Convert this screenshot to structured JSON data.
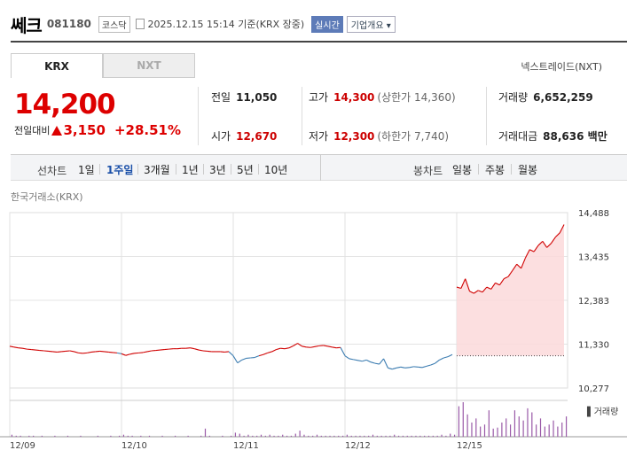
{
  "header": {
    "stock_name": "쎄크",
    "stock_code": "081180",
    "market": "코스닥",
    "timestamp": "2025.12.15 15:14",
    "basis": "기준(KRX 장중)",
    "realtime_badge": "실시간",
    "overview_button": "기업개요"
  },
  "tabs": [
    {
      "label": "KRX",
      "active": true
    },
    {
      "label": "NXT",
      "active": false
    }
  ],
  "nxt_link": "넥스트레이드(NXT)",
  "quote": {
    "price": "14,200",
    "change_label": "전일대비",
    "change_value": "3,150",
    "change_percent": "+28.51%",
    "direction": "up"
  },
  "stats": {
    "prev_close": {
      "label": "전일",
      "value": "11,050"
    },
    "high": {
      "label": "고가",
      "value": "14,300",
      "note": "(상한가 14,360)"
    },
    "volume": {
      "label": "거래량",
      "value": "6,652,259"
    },
    "open": {
      "label": "시가",
      "value": "12,670"
    },
    "low": {
      "label": "저가",
      "value": "12,300",
      "note": "(하한가 7,740)"
    },
    "trade_amount": {
      "label": "거래대금",
      "value": "88,636 백만"
    }
  },
  "period_bar": {
    "line_label": "선차트",
    "line_items": [
      {
        "label": "1일",
        "active": false
      },
      {
        "label": "1주일",
        "active": true
      },
      {
        "label": "3개월",
        "active": false
      },
      {
        "label": "1년",
        "active": false
      },
      {
        "label": "3년",
        "active": false
      },
      {
        "label": "5년",
        "active": false
      },
      {
        "label": "10년",
        "active": false
      }
    ],
    "candle_label": "봉차트",
    "candle_items": [
      {
        "label": "일봉"
      },
      {
        "label": "주봉"
      },
      {
        "label": "월봉"
      }
    ]
  },
  "chart_source": "한국거래소(KRX)",
  "colors": {
    "up": "#d00000",
    "down": "#1a5ea8",
    "neutral_line": "#3a7bb0",
    "up_fill": "#fbd9db",
    "volume_bar": "#9a5aa8"
  },
  "chart_data": {
    "type": "line",
    "title": "",
    "y_ticks": [
      "14,488",
      "13,435",
      "12,383",
      "11,330",
      "10,277"
    ],
    "ylim": [
      10277,
      14488
    ],
    "x_ticks": [
      "12/09",
      "12/10",
      "12/11",
      "12/12",
      "12/15"
    ],
    "prev_close_ref": 11050,
    "volume_label": "거래량",
    "series": [
      {
        "day": "12/09",
        "values": [
          11280,
          11260,
          11240,
          11230,
          11210,
          11200,
          11190,
          11180,
          11170,
          11160,
          11150,
          11140,
          11150,
          11160,
          11170,
          11150,
          11120,
          11110,
          11120,
          11140,
          11150,
          11160,
          11150,
          11140,
          11130,
          11120
        ]
      },
      {
        "day": "12/10",
        "values": [
          11100,
          11060,
          11090,
          11110,
          11120,
          11130,
          11150,
          11170,
          11180,
          11190,
          11200,
          11210,
          11220,
          11220,
          11230,
          11230,
          11240,
          11220,
          11190,
          11170,
          11160,
          11150,
          11150,
          11150,
          11140,
          11150
        ]
      },
      {
        "day": "12/11",
        "values": [
          11050,
          10880,
          10950,
          10990,
          11000,
          11010,
          11050,
          11080,
          11120,
          11150,
          11200,
          11230,
          11220,
          11240,
          11290,
          11350,
          11280,
          11260,
          11250,
          11270,
          11290,
          11300,
          11280,
          11260,
          11240,
          11250
        ]
      },
      {
        "day": "12/12",
        "values": [
          11050,
          10980,
          10960,
          10940,
          10920,
          10950,
          10900,
          10870,
          10850,
          10980,
          10760,
          10730,
          10760,
          10780,
          10760,
          10770,
          10790,
          10780,
          10770,
          10800,
          10830,
          10870,
          10950,
          11000,
          11030,
          11080
        ]
      },
      {
        "day": "12/15",
        "values": [
          12700,
          12670,
          12900,
          12600,
          12550,
          12620,
          12580,
          12700,
          12650,
          12800,
          12750,
          12900,
          12950,
          13100,
          13250,
          13150,
          13400,
          13600,
          13550,
          13700,
          13800,
          13650,
          13750,
          13900,
          14000,
          14200
        ]
      }
    ],
    "volume": [
      {
        "day": "12/09",
        "values": [
          2,
          1,
          1,
          0,
          1,
          1,
          0,
          1,
          0,
          0,
          1,
          0,
          0,
          1,
          0,
          0,
          1,
          0,
          0,
          0,
          1,
          0,
          0,
          1,
          0,
          1
        ]
      },
      {
        "day": "12/10",
        "values": [
          2,
          1,
          1,
          0,
          1,
          0,
          1,
          0,
          0,
          1,
          0,
          0,
          1,
          0,
          0,
          1,
          0,
          0,
          1,
          8,
          1,
          0,
          0,
          1,
          0,
          1
        ]
      },
      {
        "day": "12/11",
        "values": [
          4,
          3,
          1,
          2,
          1,
          1,
          2,
          1,
          2,
          1,
          1,
          2,
          1,
          1,
          3,
          6,
          2,
          1,
          1,
          2,
          1,
          1,
          1,
          1,
          1,
          1
        ]
      },
      {
        "day": "12/12",
        "values": [
          2,
          1,
          1,
          1,
          1,
          1,
          2,
          1,
          1,
          1,
          1,
          2,
          1,
          1,
          1,
          1,
          1,
          1,
          1,
          1,
          1,
          1,
          2,
          1,
          3,
          2
        ]
      },
      {
        "day": "12/15",
        "values": [
          30,
          34,
          22,
          14,
          18,
          10,
          12,
          26,
          8,
          9,
          14,
          18,
          12,
          26,
          20,
          16,
          28,
          24,
          12,
          18,
          10,
          12,
          16,
          10,
          14,
          20
        ]
      }
    ]
  }
}
